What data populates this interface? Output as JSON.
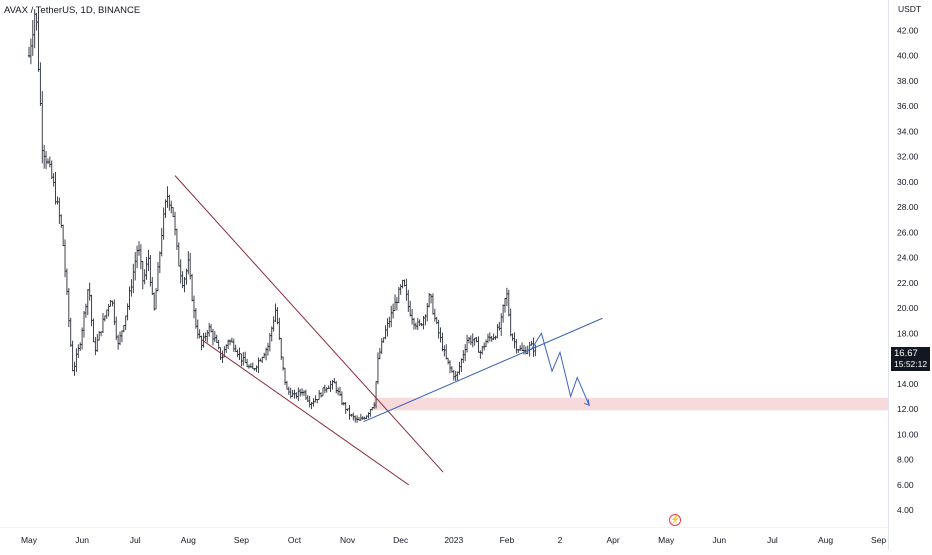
{
  "chart_data": {
    "type": "candlestick",
    "title": "AVAX / TetherUS, 1D, BINANCE",
    "y_axis_unit": "USDT",
    "ylim": [
      3.0,
      45.0
    ],
    "y_ticks": [
      "42.00",
      "40.00",
      "38.00",
      "36.00",
      "34.00",
      "32.00",
      "30.00",
      "28.00",
      "26.00",
      "24.00",
      "22.00",
      "20.00",
      "18.00",
      "16.00",
      "14.00",
      "12.00",
      "10.00",
      "8.00",
      "6.00",
      "4.00"
    ],
    "x_ticks": [
      "May",
      "Jun",
      "Jul",
      "Aug",
      "Sep",
      "Oct",
      "Nov",
      "Dec",
      "2023",
      "Feb",
      "2",
      "Apr",
      "May",
      "Jun",
      "Jul",
      "Aug",
      "Sep"
    ],
    "last_price": "16.67",
    "countdown": "15:52:12",
    "price_path": [
      [
        0.0,
        40.0
      ],
      [
        0.5,
        44.0
      ],
      [
        1.0,
        33.0
      ],
      [
        1.8,
        30.0
      ],
      [
        2.5,
        26.0
      ],
      [
        3.0,
        19.0
      ],
      [
        3.3,
        15.0
      ],
      [
        3.8,
        17.0
      ],
      [
        4.5,
        22.0
      ],
      [
        4.9,
        16.5
      ],
      [
        5.6,
        19.0
      ],
      [
        6.2,
        21.0
      ],
      [
        6.7,
        17.0
      ],
      [
        7.4,
        20.0
      ],
      [
        8.2,
        25.0
      ],
      [
        8.6,
        22.0
      ],
      [
        9.0,
        24.0
      ],
      [
        9.4,
        19.5
      ],
      [
        10.0,
        26.0
      ],
      [
        10.4,
        29.0
      ],
      [
        10.8,
        28.0
      ],
      [
        11.2,
        24.0
      ],
      [
        11.6,
        22.0
      ],
      [
        12.0,
        23.5
      ],
      [
        12.5,
        19.0
      ],
      [
        13.0,
        17.0
      ],
      [
        13.5,
        18.5
      ],
      [
        14.0,
        17.5
      ],
      [
        14.5,
        16.0
      ],
      [
        15.0,
        17.5
      ],
      [
        15.5,
        17.0
      ],
      [
        16.0,
        16.0
      ],
      [
        16.8,
        15.0
      ],
      [
        17.4,
        16.0
      ],
      [
        18.0,
        17.0
      ],
      [
        18.6,
        20.0
      ],
      [
        19.0,
        16.0
      ],
      [
        19.4,
        13.5
      ],
      [
        20.0,
        13.0
      ],
      [
        20.6,
        13.5
      ],
      [
        21.2,
        12.5
      ],
      [
        21.8,
        13.0
      ],
      [
        22.4,
        13.8
      ],
      [
        23.0,
        14.0
      ],
      [
        23.6,
        12.5
      ],
      [
        24.2,
        11.5
      ],
      [
        24.8,
        11.0
      ],
      [
        25.4,
        11.5
      ],
      [
        26.0,
        12.5
      ],
      [
        26.3,
        16.0
      ],
      [
        26.8,
        18.0
      ],
      [
        27.3,
        19.5
      ],
      [
        27.8,
        21.0
      ],
      [
        28.2,
        22.0
      ],
      [
        28.6,
        20.0
      ],
      [
        29.0,
        19.0
      ],
      [
        29.4,
        18.5
      ],
      [
        29.8,
        19.5
      ],
      [
        30.2,
        21.0
      ],
      [
        30.6,
        19.0
      ],
      [
        31.0,
        17.5
      ],
      [
        31.4,
        16.0
      ],
      [
        31.8,
        15.0
      ],
      [
        32.2,
        14.5
      ],
      [
        32.6,
        16.0
      ],
      [
        33.0,
        17.5
      ],
      [
        33.5,
        17.5
      ],
      [
        34.0,
        16.5
      ],
      [
        34.5,
        17.5
      ],
      [
        35.0,
        17.8
      ],
      [
        35.5,
        18.5
      ],
      [
        35.8,
        20.5
      ],
      [
        36.0,
        21.0
      ],
      [
        36.3,
        18.0
      ],
      [
        36.7,
        17.0
      ],
      [
        37.2,
        16.5
      ],
      [
        37.8,
        17.0
      ],
      [
        38.2,
        16.67
      ]
    ],
    "trendlines": [
      {
        "name": "falling-wedge-upper",
        "color": "#8b2e3c",
        "points": [
          [
            11.0,
            30.5
          ],
          [
            31.2,
            7.0
          ]
        ]
      },
      {
        "name": "falling-wedge-lower",
        "color": "#8b2e3c",
        "points": [
          [
            13.0,
            17.5
          ],
          [
            28.6,
            6.0
          ]
        ]
      },
      {
        "name": "rising-support",
        "color": "#3661b8",
        "points": [
          [
            25.2,
            11.0
          ],
          [
            43.2,
            19.2
          ]
        ]
      }
    ],
    "support_zone": {
      "from_x": 26.0,
      "low": 11.9,
      "high": 12.9,
      "color": "#f7d3d6"
    },
    "projected_path": {
      "color": "#3d62c4",
      "points": [
        [
          37.8,
          16.67
        ],
        [
          38.6,
          18.0
        ],
        [
          39.4,
          15.0
        ],
        [
          40.0,
          16.5
        ],
        [
          40.8,
          13.0
        ],
        [
          41.3,
          14.5
        ],
        [
          42.2,
          12.3
        ]
      ]
    },
    "event_marker": "⚡"
  }
}
